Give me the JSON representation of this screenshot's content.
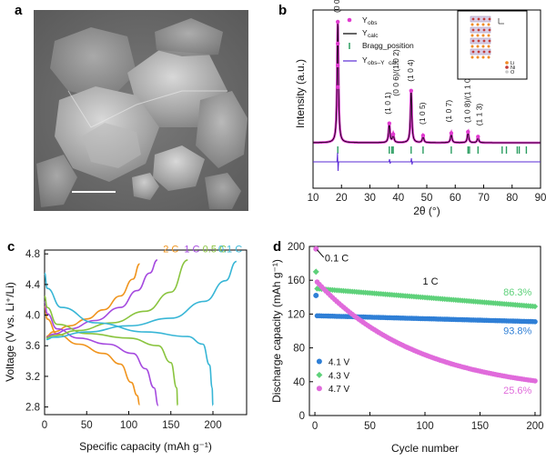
{
  "panel_labels": {
    "a": "a",
    "b": "b",
    "c": "c",
    "d": "d"
  },
  "chart_data": [
    {
      "id": "a",
      "type": "image",
      "description_note": "SEM micrograph with scale bar",
      "colors": {
        "background": "#6b6b6b",
        "particle": "#a9a9a9",
        "highlight": "#dcdcdc",
        "scalebar": "#ffffff"
      }
    },
    {
      "id": "b",
      "type": "line",
      "title": "",
      "xlabel": "2θ (°)",
      "ylabel": "Intensity (a.u.)",
      "xlim": [
        10,
        90
      ],
      "xticks": [
        "10",
        "20",
        "30",
        "40",
        "50",
        "60",
        "70",
        "80",
        "90"
      ],
      "legend": {
        "placement": "top-center",
        "entries": [
          {
            "key": "obs",
            "label": "Y",
            "sub": "obs",
            "color": "#e13ad0",
            "style": "dot"
          },
          {
            "key": "calc",
            "label": "Y",
            "sub": "calc",
            "color": "#000000",
            "style": "line"
          },
          {
            "key": "bragg",
            "label": "Bragg_position",
            "color": "#2a9d60",
            "style": "tick"
          },
          {
            "key": "diff",
            "label": "Y",
            "sub": "obs–Y",
            "sub2": "calc",
            "color": "#5a2bd6",
            "style": "line"
          }
        ]
      },
      "peaks": [
        {
          "hkl": "(0 0 3)",
          "two_theta": 18.7,
          "intensity": 1.0
        },
        {
          "hkl": "(1 0 1)",
          "two_theta": 36.8,
          "intensity": 0.16
        },
        {
          "hkl": "(0 0 6)/(1 0 2)",
          "two_theta": 38.2,
          "intensity": 0.07
        },
        {
          "hkl": "(1 0 4)",
          "two_theta": 44.5,
          "intensity": 0.43
        },
        {
          "hkl": "(1 0 5)",
          "two_theta": 48.7,
          "intensity": 0.06
        },
        {
          "hkl": "(1 0 7)",
          "two_theta": 58.6,
          "intensity": 0.08
        },
        {
          "hkl": "(1 0 8)/(1 1 0)",
          "two_theta": 64.5,
          "intensity": 0.09
        },
        {
          "hkl": "(1 1 3)",
          "two_theta": 68.0,
          "intensity": 0.05
        }
      ],
      "bragg_positions": [
        18.7,
        36.8,
        37.7,
        38.2,
        44.5,
        48.7,
        58.6,
        64.5,
        65.0,
        68.0,
        76.5,
        78.0,
        81.8,
        82.5,
        85.0
      ],
      "inset": {
        "description": "crystal structure",
        "legend": [
          "Li",
          "Ni",
          "O"
        ],
        "colors": {
          "Li": "#f08a24",
          "Ni": "#c23b3b",
          "O": "#c9c9c9"
        }
      }
    },
    {
      "id": "c",
      "type": "line",
      "xlabel": "Specific capacity (mAh g⁻¹)",
      "ylabel": "Voltage (V vs. Li⁺/Li)",
      "xlim": [
        0,
        240
      ],
      "ylim": [
        2.7,
        4.85
      ],
      "xticks": [
        "0",
        "50",
        "100",
        "150",
        "200"
      ],
      "yticks": [
        "2.8",
        "3.2",
        "3.6",
        "4.0",
        "4.4",
        "4.8"
      ],
      "series": [
        {
          "name": "2 C",
          "color": "#f0941d",
          "charge": [
            [
              2,
              3.72
            ],
            [
              10,
              3.78
            ],
            [
              30,
              3.86
            ],
            [
              50,
              3.95
            ],
            [
              70,
              4.07
            ],
            [
              90,
              4.25
            ],
            [
              105,
              4.47
            ],
            [
              113,
              4.67
            ]
          ],
          "discharge": [
            [
              0,
              4.12
            ],
            [
              3,
              3.95
            ],
            [
              15,
              3.75
            ],
            [
              40,
              3.62
            ],
            [
              70,
              3.5
            ],
            [
              90,
              3.36
            ],
            [
              103,
              3.12
            ],
            [
              110,
              2.95
            ],
            [
              113,
              2.83
            ]
          ]
        },
        {
          "name": "1 C",
          "color": "#a54adf",
          "charge": [
            [
              2,
              3.71
            ],
            [
              10,
              3.75
            ],
            [
              30,
              3.82
            ],
            [
              60,
              3.93
            ],
            [
              90,
              4.1
            ],
            [
              110,
              4.32
            ],
            [
              125,
              4.55
            ],
            [
              134,
              4.72
            ]
          ],
          "discharge": [
            [
              0,
              4.18
            ],
            [
              3,
              4.02
            ],
            [
              15,
              3.82
            ],
            [
              40,
              3.7
            ],
            [
              75,
              3.62
            ],
            [
              105,
              3.5
            ],
            [
              120,
              3.3
            ],
            [
              130,
              3.05
            ],
            [
              135,
              2.82
            ]
          ]
        },
        {
          "name": "0.5 C",
          "color": "#8ac43f",
          "charge": [
            [
              2,
              3.7
            ],
            [
              10,
              3.73
            ],
            [
              40,
              3.8
            ],
            [
              80,
              3.9
            ],
            [
              120,
              4.05
            ],
            [
              150,
              4.3
            ],
            [
              170,
              4.72
            ]
          ],
          "discharge": [
            [
              0,
              4.25
            ],
            [
              3,
              4.1
            ],
            [
              15,
              3.88
            ],
            [
              50,
              3.76
            ],
            [
              100,
              3.7
            ],
            [
              135,
              3.6
            ],
            [
              150,
              3.38
            ],
            [
              157,
              3.05
            ],
            [
              158,
              2.82
            ]
          ]
        },
        {
          "name": "0.1 C",
          "color": "#38b6d6",
          "charge": [
            [
              2,
              3.68
            ],
            [
              10,
              3.71
            ],
            [
              50,
              3.78
            ],
            [
              100,
              3.86
            ],
            [
              150,
              3.96
            ],
            [
              190,
              4.18
            ],
            [
              215,
              4.45
            ],
            [
              228,
              4.7
            ]
          ],
          "discharge": [
            [
              0,
              4.55
            ],
            [
              3,
              4.35
            ],
            [
              20,
              4.1
            ],
            [
              60,
              3.9
            ],
            [
              120,
              3.78
            ],
            [
              170,
              3.72
            ],
            [
              188,
              3.62
            ],
            [
              196,
              3.35
            ],
            [
              199,
              3.05
            ],
            [
              200,
              2.82
            ]
          ]
        }
      ]
    },
    {
      "id": "d",
      "type": "scatter",
      "xlabel": "Cycle number",
      "ylabel": "Discharge capacity (mAh g⁻¹)",
      "xlim": [
        -5,
        205
      ],
      "ylim": [
        0,
        200
      ],
      "xticks": [
        "0",
        "50",
        "100",
        "150",
        "200"
      ],
      "yticks": [
        "0",
        "40",
        "80",
        "120",
        "160",
        "200"
      ],
      "annotations": {
        "first_cycle": "0.1 C",
        "rate": "1 C"
      },
      "series": [
        {
          "name": "4.1 V",
          "color": "#2f7fd6",
          "marker": "circle",
          "first": 142,
          "start": 118,
          "end": 111,
          "retention": "93.8%"
        },
        {
          "name": "4.3 V",
          "color": "#5ed17a",
          "marker": "diamond",
          "first": 170,
          "start": 150,
          "end": 129,
          "retention": "86.3%"
        },
        {
          "name": "4.7 V",
          "color": "#e06bdb",
          "marker": "circle",
          "first": 197,
          "start": 158,
          "end": 41,
          "retention": "25.6%"
        }
      ]
    }
  ]
}
